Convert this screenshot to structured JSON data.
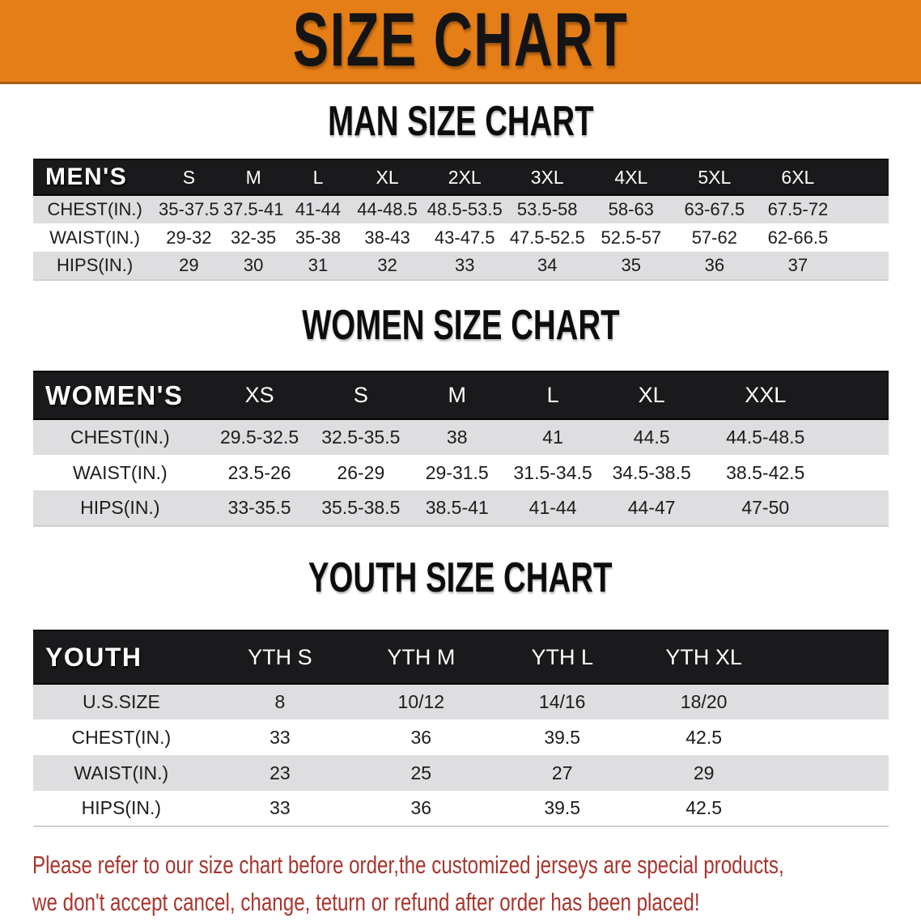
{
  "banner": {
    "title": "SIZE CHART"
  },
  "colors": {
    "banner_bg": "#E67E17",
    "banner_border": "#A85F12",
    "header_band": "#1A1A1C",
    "row_gray": "#DEDEE1",
    "row_white": "#FFFFFF",
    "disclaimer_red": "#A8352E"
  },
  "sections": [
    {
      "id": "men",
      "heading": "MAN SIZE CHART",
      "table": {
        "corner_label": "MEN'S",
        "columns": [
          "S",
          "M",
          "L",
          "XL",
          "2XL",
          "3XL",
          "4XL",
          "5XL",
          "6XL"
        ],
        "rows": [
          {
            "label": "CHEST(IN.)",
            "values": [
              "35-37.5",
              "37.5-41",
              "41-44",
              "44-48.5",
              "48.5-53.5",
              "53.5-58",
              "58-63",
              "63-67.5",
              "67.5-72"
            ]
          },
          {
            "label": "WAIST(IN.)",
            "values": [
              "29-32",
              "32-35",
              "35-38",
              "38-43",
              "43-47.5",
              "47.5-52.5",
              "52.5-57",
              "57-62",
              "62-66.5"
            ]
          },
          {
            "label": "HIPS(IN.)",
            "values": [
              "29",
              "30",
              "31",
              "32",
              "33",
              "34",
              "35",
              "36",
              "37"
            ]
          }
        ]
      }
    },
    {
      "id": "women",
      "heading": "WOMEN SIZE CHART",
      "table": {
        "corner_label": "WOMEN'S",
        "columns": [
          "XS",
          "S",
          "M",
          "L",
          "XL",
          "XXL"
        ],
        "rows": [
          {
            "label": "CHEST(IN.)",
            "values": [
              "29.5-32.5",
              "32.5-35.5",
              "38",
              "41",
              "44.5",
              "44.5-48.5"
            ]
          },
          {
            "label": "WAIST(IN.)",
            "values": [
              "23.5-26",
              "26-29",
              "29-31.5",
              "31.5-34.5",
              "34.5-38.5",
              "38.5-42.5"
            ]
          },
          {
            "label": "HIPS(IN.)",
            "values": [
              "33-35.5",
              "35.5-38.5",
              "38.5-41",
              "41-44",
              "44-47",
              "47-50"
            ]
          }
        ]
      }
    },
    {
      "id": "youth",
      "heading": "YOUTH SIZE CHART",
      "table": {
        "corner_label": "YOUTH",
        "columns": [
          "YTH S",
          "YTH M",
          "YTH L",
          "YTH XL"
        ],
        "rows": [
          {
            "label": "U.S.SIZE",
            "values": [
              "8",
              "10/12",
              "14/16",
              "18/20"
            ]
          },
          {
            "label": "CHEST(IN.)",
            "values": [
              "33",
              "36",
              "39.5",
              "42.5"
            ]
          },
          {
            "label": "WAIST(IN.)",
            "values": [
              "23",
              "25",
              "27",
              "29"
            ]
          },
          {
            "label": "HIPS(IN.)",
            "values": [
              "33",
              "36",
              "39.5",
              "42.5"
            ]
          }
        ]
      }
    }
  ],
  "disclaimer": {
    "line1": "Please refer to our size chart before order,the customized jerseys are special products,",
    "line2": "we don't accept cancel, change, teturn or refund after order has been placed!"
  }
}
